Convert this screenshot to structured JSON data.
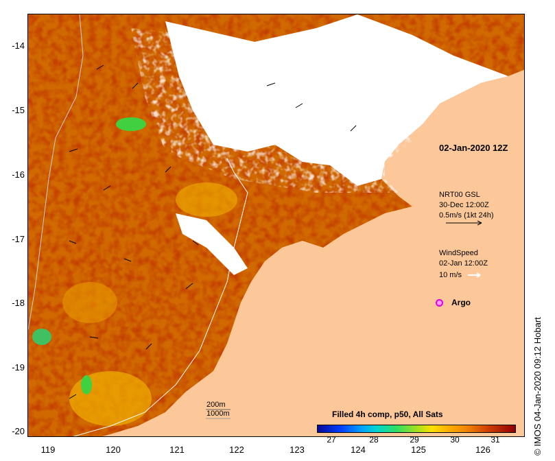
{
  "map": {
    "y_axis_labels": [
      "-14",
      "-15",
      "-16",
      "-17",
      "-18",
      "-19",
      "-20"
    ],
    "x_axis_labels": [
      "119",
      "120",
      "121",
      "122",
      "123",
      "124",
      "125",
      "126"
    ],
    "date_label": "02-Jan-2020 12Z",
    "current_legend": {
      "line1": "NRT00 GSL",
      "line2": "30-Dec 12:00Z",
      "line3": "0.5m/s (1kt 24h)"
    },
    "wind_legend": {
      "line1": "WindSpeed",
      "line2": "02-Jan 12:00Z",
      "line3": "10 m/s"
    },
    "argo_label": "Argo",
    "depth_labels": {
      "d200": "200m",
      "d1000": "1000m"
    },
    "colorbar": {
      "title": "Filled 4h comp, p50, All Sats",
      "labels": [
        "27",
        "28",
        "29",
        "30",
        "31"
      ]
    },
    "copyright": "© IMOS 04-Jan-2020 09:12 Hobart",
    "colors": {
      "land": "#fcc89a",
      "warm": "#8b0a00",
      "orange": "#d06a00",
      "yellow": "#f0b000",
      "green": "#40d040",
      "cloud": "#ffffff"
    }
  }
}
